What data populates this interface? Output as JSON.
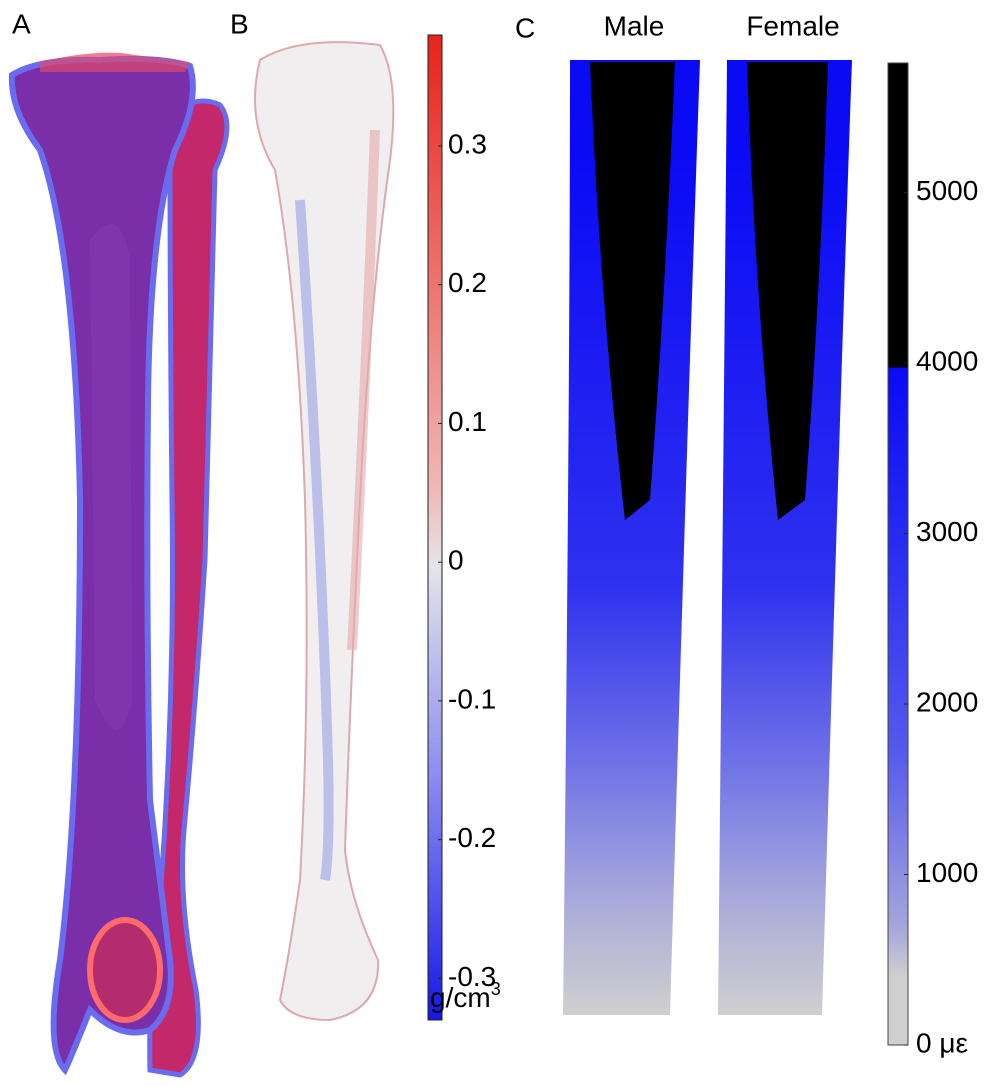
{
  "panels": {
    "a": {
      "label": "A"
    },
    "b": {
      "label": "B"
    },
    "c": {
      "label": "C",
      "titles": [
        "Male",
        "Female"
      ]
    }
  },
  "colorbar_b": {
    "lim": [
      -0.33,
      0.38
    ],
    "ticks": [
      0.3,
      0.2,
      0.1,
      0,
      -0.1,
      -0.2,
      -0.3
    ],
    "unit": "g/cm",
    "unit_sup": "3"
  },
  "colorbar_c": {
    "lim": [
      0,
      5760
    ],
    "ticks": [
      5000,
      4000,
      3000,
      2000,
      1000,
      {
        "value": 0,
        "label": "0 με"
      }
    ]
  }
}
